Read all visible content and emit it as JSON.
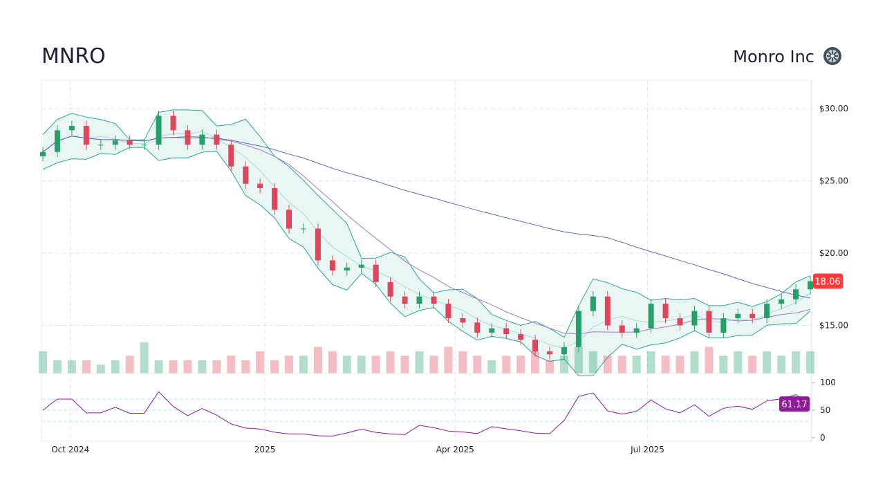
{
  "header": {
    "ticker": "MNRO",
    "company": "Monro Inc",
    "logo_icon": "tire-wheel-icon"
  },
  "chart_data": {
    "type": "candlestick",
    "title": "MNRO",
    "interval": "weekly",
    "start_date": "2024-09-18",
    "x_tick_labels": [
      {
        "label": "Oct 2024",
        "date": "2024-10-01"
      },
      {
        "label": "2025",
        "date": "2025-01-01"
      },
      {
        "label": "Apr 2025",
        "date": "2025-04-01"
      },
      {
        "label": "Jul 2025",
        "date": "2025-07-01"
      }
    ],
    "end_date": "2025-09-16",
    "price_axis": {
      "ticks": [
        30,
        25,
        20,
        15
      ],
      "tick_labels": [
        "$30.00",
        "$25.00",
        "$20.00",
        "$15.00"
      ],
      "range": [
        11.3,
        32
      ]
    },
    "closes": [
      27.0,
      28.5,
      28.8,
      27.5,
      27.5,
      27.8,
      27.5,
      27.5,
      29.5,
      28.5,
      27.5,
      28.2,
      27.5,
      26.0,
      24.8,
      24.5,
      23.0,
      21.7,
      21.7,
      19.5,
      18.8,
      19.0,
      19.2,
      18.0,
      17.0,
      16.5,
      17.0,
      16.5,
      15.5,
      15.2,
      14.5,
      14.8,
      14.4,
      14.0,
      13.2,
      13.0,
      13.5,
      16.0,
      17.0,
      15.0,
      14.5,
      14.8,
      16.5,
      15.5,
      15.0,
      16.0,
      14.5,
      15.5,
      15.8,
      15.5,
      16.5,
      16.8,
      17.5,
      18.06
    ],
    "volumes": [
      5,
      3,
      3,
      3,
      2,
      3,
      4,
      7,
      3,
      3,
      3,
      3,
      3,
      4,
      3,
      5,
      3,
      4,
      4,
      6,
      5,
      4,
      4,
      4,
      5,
      4,
      5,
      4,
      6,
      5,
      4,
      3,
      4,
      4,
      5,
      3,
      4,
      6,
      5,
      4,
      4,
      4,
      5,
      4,
      4,
      5,
      6,
      4,
      5,
      4,
      5,
      4,
      5,
      5
    ],
    "last_price": "18.06",
    "indicators": {
      "bollinger": {
        "period": 4,
        "stddev": 2
      },
      "sma_fast": 10,
      "sma_slow": 40
    },
    "rsi": {
      "ticks": [
        100,
        50,
        0
      ],
      "tick_labels": [
        "100",
        "50",
        "0"
      ],
      "levels": [
        70,
        50,
        30
      ],
      "last_value": "61.17"
    },
    "colors": {
      "up": "#26a069",
      "down": "#e0465a",
      "band": "#26a69a",
      "band_fill": "#e8f5f3",
      "sma_fast": "#9c7cc4",
      "sma_slow": "#5c6bc0",
      "rsi": "#8e1a9c",
      "last_price_badge": "#ff3b3b",
      "rsi_badge": "#8e1a9c",
      "grid": "#d7e9ee"
    },
    "grid": true
  }
}
